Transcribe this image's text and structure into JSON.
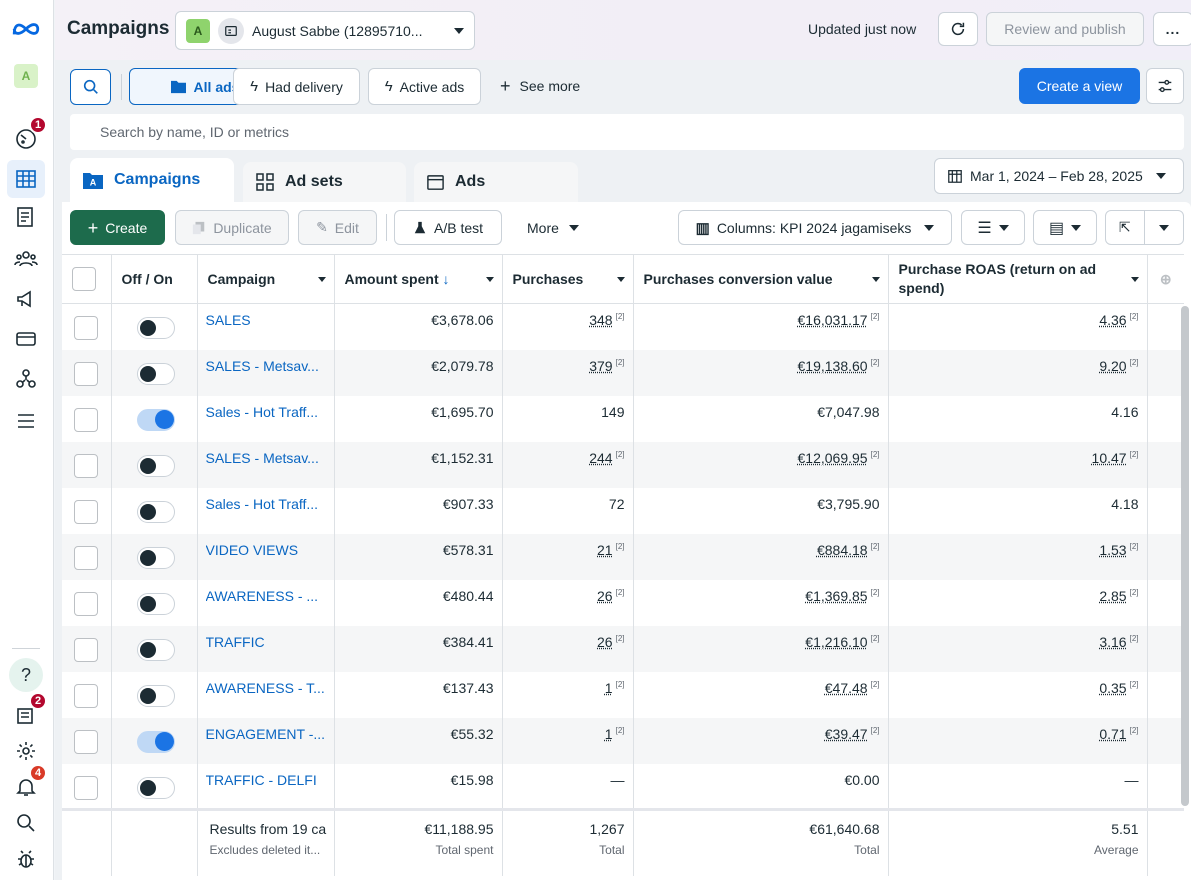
{
  "sidebar": {
    "account_initial": "A",
    "notifications_badge": "1",
    "inbox_badge": "2",
    "alerts_badge": "4",
    "help_label": "?"
  },
  "header": {
    "title": "Campaigns",
    "account_initial": "A",
    "account_name": "August Sabbe (12895710...",
    "updated_text": "Updated just now",
    "review_label": "Review and publish",
    "more_icon": "..."
  },
  "filters": {
    "all_ads": "All ads",
    "had_delivery": "Had delivery",
    "active_ads": "Active ads",
    "see_more": "See more",
    "create_view": "Create a view",
    "search_placeholder": "Search by name, ID or metrics"
  },
  "tabs": {
    "campaigns": "Campaigns",
    "ad_sets": "Ad sets",
    "ads": "Ads",
    "date_range": "Mar 1, 2024 – Feb 28, 2025"
  },
  "toolbar": {
    "create": "Create",
    "duplicate": "Duplicate",
    "edit": "Edit",
    "ab_test": "A/B test",
    "more": "More",
    "columns": "Columns: KPI 2024 jagamiseks"
  },
  "table": {
    "columns": {
      "off_on": "Off / On",
      "campaign": "Campaign",
      "amount": "Amount spent",
      "purchases": "Purchases",
      "conv_value": "Purchases conversion value",
      "roas": "Purchase ROAS (return on ad spend)"
    },
    "rows": [
      {
        "on": false,
        "name": "SALES",
        "amount": "€3,678.06",
        "purchases": "348",
        "value": "€16,031.17",
        "roas": "4.36",
        "flag": true
      },
      {
        "on": false,
        "name": "SALES - Metsav...",
        "amount": "€2,079.78",
        "purchases": "379",
        "value": "€19,138.60",
        "roas": "9.20",
        "flag": true
      },
      {
        "on": true,
        "name": "Sales - Hot Traff...",
        "amount": "€1,695.70",
        "purchases": "149",
        "value": "€7,047.98",
        "roas": "4.16",
        "flag": false
      },
      {
        "on": false,
        "name": "SALES - Metsav...",
        "amount": "€1,152.31",
        "purchases": "244",
        "value": "€12,069.95",
        "roas": "10.47",
        "flag": true
      },
      {
        "on": false,
        "name": "Sales - Hot Traff...",
        "amount": "€907.33",
        "purchases": "72",
        "value": "€3,795.90",
        "roas": "4.18",
        "flag": false
      },
      {
        "on": false,
        "name": "VIDEO VIEWS",
        "amount": "€578.31",
        "purchases": "21",
        "value": "€884.18",
        "roas": "1.53",
        "flag": true
      },
      {
        "on": false,
        "name": "AWARENESS - ...",
        "amount": "€480.44",
        "purchases": "26",
        "value": "€1,369.85",
        "roas": "2.85",
        "flag": true
      },
      {
        "on": false,
        "name": "TRAFFIC",
        "amount": "€384.41",
        "purchases": "26",
        "value": "€1,216.10",
        "roas": "3.16",
        "flag": true
      },
      {
        "on": false,
        "name": "AWARENESS - T...",
        "amount": "€137.43",
        "purchases": "1",
        "value": "€47.48",
        "roas": "0.35",
        "flag": true
      },
      {
        "on": true,
        "name": "ENGAGEMENT -...",
        "amount": "€55.32",
        "purchases": "1",
        "value": "€39.47",
        "roas": "0.71",
        "flag": true
      },
      {
        "on": false,
        "name": "TRAFFIC - DELFI",
        "amount": "€15.98",
        "purchases": "—",
        "value": "€0.00",
        "roas": "—",
        "flag": false
      }
    ],
    "footnote_mark": "[2]",
    "footer": {
      "results": "Results from 19 ca",
      "excludes": "Excludes deleted it...",
      "amount": "€11,188.95",
      "amount_sub": "Total spent",
      "purchases": "1,267",
      "purchases_sub": "Total",
      "value": "€61,640.68",
      "value_sub": "Total",
      "roas": "5.51",
      "roas_sub": "Average"
    }
  }
}
